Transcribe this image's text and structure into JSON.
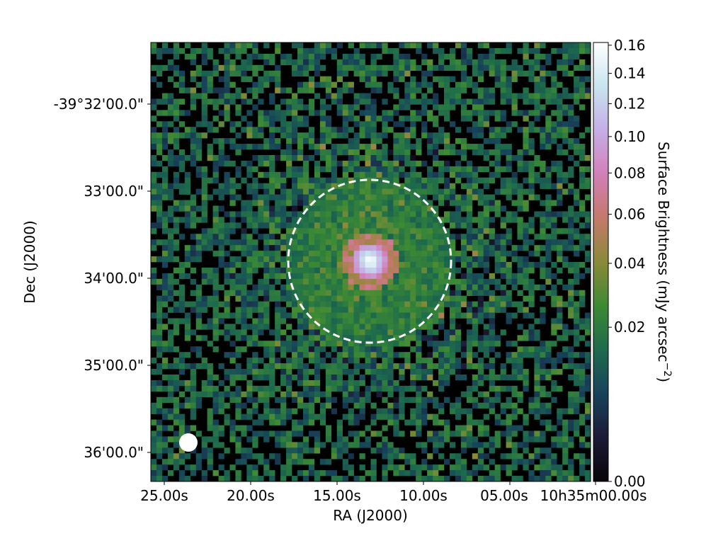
{
  "chart_data": {
    "type": "heatmap",
    "title": "",
    "xlabel": "RA (J2000)",
    "ylabel": "Dec (J2000)",
    "x_tick_labels": [
      "25.00s",
      "20.00s",
      "15.00s",
      "10.00s",
      "05.00s",
      "10h35m00.00s"
    ],
    "y_tick_labels": [
      "-39°32'00.0\"",
      "33'00.0\"",
      "34'00.0\"",
      "35'00.0\"",
      "36'00.0\""
    ],
    "colorbar": {
      "label_main": "Surface Brightness (mJy arcsec",
      "label_exp": "−2",
      "label_end": ")",
      "tick_values": [
        0.0,
        0.02,
        0.04,
        0.06,
        0.08,
        0.1,
        0.12,
        0.14,
        0.16
      ],
      "tick_labels": [
        "0.00",
        "0.02",
        "0.04",
        "0.06",
        "0.08",
        "0.10",
        "0.12",
        "0.14",
        "0.16"
      ],
      "range": [
        0.0,
        0.162
      ],
      "scale": "sqrt",
      "colormap": [
        "#080408",
        "#1c1a36",
        "#17435a",
        "#1d6a4c",
        "#3c8a34",
        "#8a8a3a",
        "#c4796a",
        "#d27fb7",
        "#c6aee6",
        "#c8e4ee",
        "#ffffff"
      ]
    },
    "annotations": [
      {
        "type": "dashed-circle",
        "description": "aperture centered on the bright central source",
        "color": "#ffffff"
      },
      {
        "type": "beam",
        "description": "beam marker in the lower-left corner",
        "color": "#ffffff"
      }
    ],
    "map_grid": {
      "columns": 78,
      "rows": 78
    },
    "background_color": "#000000"
  }
}
